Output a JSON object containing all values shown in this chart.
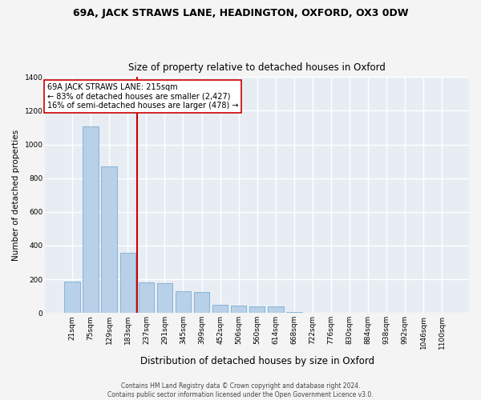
{
  "title": "69A, JACK STRAWS LANE, HEADINGTON, OXFORD, OX3 0DW",
  "subtitle": "Size of property relative to detached houses in Oxford",
  "xlabel": "Distribution of detached houses by size in Oxford",
  "ylabel": "Number of detached properties",
  "categories": [
    "21sqm",
    "75sqm",
    "129sqm",
    "183sqm",
    "237sqm",
    "291sqm",
    "345sqm",
    "399sqm",
    "452sqm",
    "506sqm",
    "560sqm",
    "614sqm",
    "668sqm",
    "722sqm",
    "776sqm",
    "830sqm",
    "884sqm",
    "938sqm",
    "992sqm",
    "1046sqm",
    "1100sqm"
  ],
  "values": [
    185,
    1105,
    870,
    355,
    180,
    175,
    130,
    125,
    50,
    45,
    40,
    40,
    5,
    0,
    0,
    0,
    0,
    0,
    0,
    0,
    0
  ],
  "bar_color": "#b8d0e8",
  "bar_edge_color": "#7aafd4",
  "vline_color": "#cc0000",
  "vline_x_index": 3.5,
  "annotation_text": "69A JACK STRAWS LANE: 215sqm\n← 83% of detached houses are smaller (2,427)\n16% of semi-detached houses are larger (478) →",
  "annotation_box_facecolor": "#ffffff",
  "annotation_box_edgecolor": "#cc0000",
  "plot_bg_color": "#e8edf4",
  "fig_bg_color": "#f4f4f4",
  "grid_color": "#ffffff",
  "footer": "Contains HM Land Registry data © Crown copyright and database right 2024.\nContains public sector information licensed under the Open Government Licence v3.0.",
  "ylim": [
    0,
    1400
  ],
  "yticks": [
    0,
    200,
    400,
    600,
    800,
    1000,
    1200,
    1400
  ],
  "title_fontsize": 9,
  "subtitle_fontsize": 8.5,
  "xlabel_fontsize": 8.5,
  "ylabel_fontsize": 7.5,
  "tick_fontsize": 6.5,
  "annotation_fontsize": 7,
  "footer_fontsize": 5.5
}
